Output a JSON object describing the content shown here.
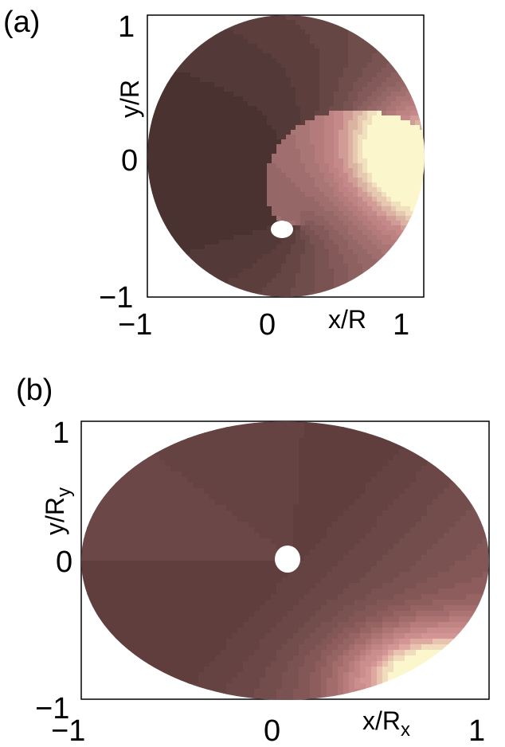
{
  "chart_data": [
    {
      "type": "heatmap",
      "panel_label": "(a)",
      "xlabel": "x/R",
      "ylabel": "y/R",
      "x_ticks": [
        "−1",
        "0",
        "1"
      ],
      "y_ticks": [
        "−1",
        "0",
        "1"
      ],
      "xlim": [
        -1,
        1
      ],
      "ylim": [
        -1,
        1
      ],
      "domain_shape": "circle",
      "hole": {
        "x": 0.1,
        "y": -0.5,
        "rx": 0.08,
        "ry": 0.05
      },
      "colormap": [
        "#1f0000",
        "#3f2a28",
        "#6b4a48",
        "#9a6a6a",
        "#c88a8a",
        "#fbf6cb"
      ],
      "levels": 24
    },
    {
      "type": "heatmap",
      "panel_label": "(b)",
      "xlabel": "x/R",
      "xlabel_sub": "x",
      "ylabel": "y/R",
      "ylabel_sub": "y",
      "x_ticks": [
        "−1",
        "0",
        "1"
      ],
      "y_ticks": [
        "−1",
        "0",
        "1"
      ],
      "xlim": [
        -1,
        1
      ],
      "ylim": [
        -1,
        1
      ],
      "domain_shape": "ellipse",
      "hole": {
        "x": 0.03,
        "y": 0.02,
        "rx": 0.06,
        "ry": 0.09
      },
      "colormap": [
        "#5a3a3a",
        "#6f4a4a",
        "#8f5e5e",
        "#b57a7a",
        "#d89a98",
        "#fbf6cb"
      ],
      "levels": 18
    }
  ]
}
